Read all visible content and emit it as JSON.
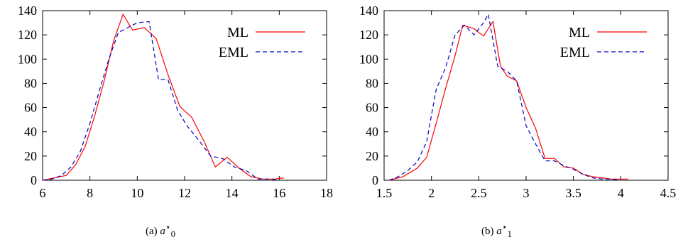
{
  "charts": [
    {
      "caption": {
        "label": "(a)",
        "var": "a",
        "sup": "⋆",
        "sub": "0"
      },
      "chart_data": {
        "type": "line",
        "xlim": [
          6,
          18
        ],
        "ylim": [
          0,
          140
        ],
        "xticks": [
          "6",
          "8",
          "10",
          "12",
          "14",
          "16",
          "18"
        ],
        "yticks": [
          "0",
          "20",
          "40",
          "60",
          "80",
          "100",
          "120",
          "140"
        ],
        "legend_position": "top-right",
        "grid": false,
        "series": [
          {
            "name": "ML",
            "color": "#ff0000",
            "dash": "solid",
            "x": [
              6.0,
              6.5,
              7.0,
              7.4,
              7.8,
              8.2,
              8.6,
              9.0,
              9.4,
              9.8,
              10.3,
              10.8,
              11.3,
              11.8,
              12.3,
              12.8,
              13.3,
              13.8,
              14.3,
              14.8,
              15.3,
              15.8,
              16.2
            ],
            "y": [
              0,
              2,
              4,
              13,
              28,
              53,
              82,
              115,
              137,
              124,
              126,
              117,
              87,
              61,
              52,
              33,
              11,
              19,
              10,
              3,
              1,
              1,
              2
            ]
          },
          {
            "name": "EML",
            "color": "#0000c0",
            "dash": "dashed",
            "x": [
              6.0,
              6.4,
              6.8,
              7.2,
              7.6,
              8.0,
              8.4,
              8.8,
              9.2,
              9.6,
              10.0,
              10.5,
              10.9,
              11.3,
              11.7,
              12.1,
              12.6,
              13.1,
              13.6,
              14.1,
              14.6,
              15.1,
              15.6,
              16.0
            ],
            "y": [
              0,
              1,
              4,
              11,
              24,
              47,
              74,
              100,
              122,
              126,
              130,
              131,
              83,
              83,
              58,
              45,
              33,
              20,
              18,
              11,
              8,
              1,
              1,
              0
            ]
          }
        ]
      }
    },
    {
      "caption": {
        "label": "(b)",
        "var": "a",
        "sup": "⋆",
        "sub": "1"
      },
      "chart_data": {
        "type": "line",
        "xlim": [
          1.5,
          4.5
        ],
        "ylim": [
          0,
          140
        ],
        "xticks": [
          "1.5",
          "2",
          "2.5",
          "3",
          "3.5",
          "4",
          "4.5"
        ],
        "yticks": [
          "0",
          "20",
          "40",
          "60",
          "80",
          "100",
          "120",
          "140"
        ],
        "legend_position": "top-right",
        "grid": false,
        "series": [
          {
            "name": "ML",
            "color": "#ff0000",
            "dash": "solid",
            "x": [
              1.55,
              1.7,
              1.85,
              1.95,
              2.05,
              2.15,
              2.25,
              2.33,
              2.45,
              2.55,
              2.65,
              2.73,
              2.8,
              2.9,
              3.0,
              3.1,
              3.2,
              3.3,
              3.4,
              3.5,
              3.6,
              3.7,
              3.8,
              3.9,
              4.0,
              4.08
            ],
            "y": [
              0,
              3,
              10,
              19,
              47,
              76,
              103,
              128,
              125,
              119,
              131,
              94,
              86,
              82,
              60,
              43,
              18,
              18,
              11,
              10,
              5,
              3,
              2,
              1,
              1,
              1
            ]
          },
          {
            "name": "EML",
            "color": "#0000c0",
            "dash": "dashed",
            "x": [
              1.55,
              1.65,
              1.75,
              1.85,
              1.95,
              2.05,
              2.15,
              2.25,
              2.35,
              2.45,
              2.55,
              2.6,
              2.7,
              2.8,
              2.9,
              3.0,
              3.1,
              3.2,
              3.3,
              3.4,
              3.5,
              3.6,
              3.7,
              3.8,
              3.9,
              4.0
            ],
            "y": [
              0,
              3,
              8,
              15,
              32,
              75,
              93,
              120,
              128,
              120,
              130,
              137,
              94,
              90,
              82,
              45,
              30,
              16,
              16,
              12,
              9,
              5,
              2,
              1,
              1,
              0
            ]
          }
        ]
      }
    }
  ]
}
